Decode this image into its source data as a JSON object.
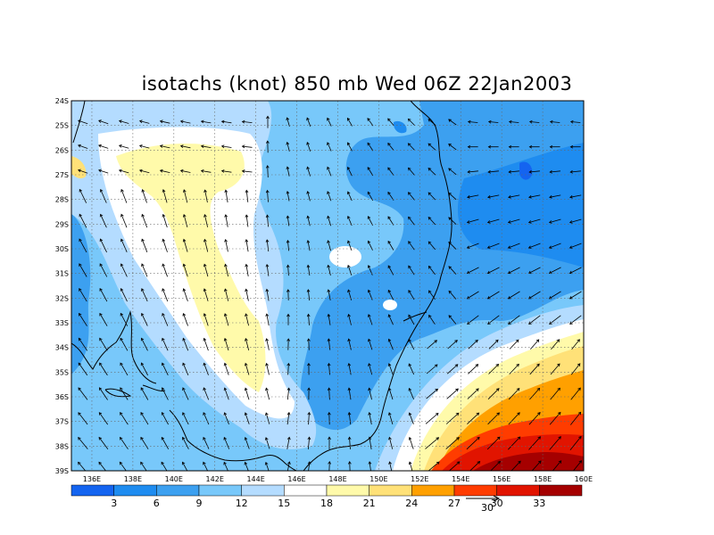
{
  "title": "isotachs (knot) 850 mb Wed 06Z 22Jan2003",
  "map": {
    "lon_range": [
      135,
      160
    ],
    "lat_range": [
      -39,
      -24
    ],
    "lon_ticks": [
      "136E",
      "138E",
      "140E",
      "142E",
      "144E",
      "146E",
      "148E",
      "150E",
      "152E",
      "154E",
      "156E",
      "158E",
      "160E"
    ],
    "lat_ticks": [
      "24S",
      "25S",
      "26S",
      "27S",
      "28S",
      "29S",
      "30S",
      "31S",
      "32S",
      "33S",
      "34S",
      "35S",
      "36S",
      "37S",
      "38S",
      "39S"
    ],
    "gridlines": "dotted"
  },
  "colorbar": {
    "labels": [
      "3",
      "6",
      "9",
      "12",
      "15",
      "18",
      "21",
      "24",
      "27",
      "30",
      "33"
    ],
    "colors": [
      "#1464f0",
      "#1e8cf0",
      "#3ca0f0",
      "#78c8fa",
      "#b4dcff",
      "#ffffff",
      "#fffaaa",
      "#ffe178",
      "#ffa000",
      "#ff3c00",
      "#e11400",
      "#a50000"
    ]
  },
  "reference_vector": {
    "label": "30"
  },
  "fields": {
    "style": "filled contours of wind speed with wind vector arrows"
  }
}
